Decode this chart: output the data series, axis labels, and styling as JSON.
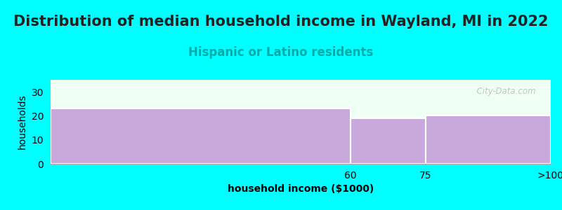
{
  "title": "Distribution of median household income in Wayland, MI in 2022",
  "subtitle": "Hispanic or Latino residents",
  "xlabel": "household income ($1000)",
  "ylabel": "households",
  "background_color": "#00FFFF",
  "plot_bg_color": "#F0FFF4",
  "bar_color": "#C9A8DC",
  "bar_edge_color": "#FFFFFF",
  "categories": [
    "60",
    "75",
    ">100"
  ],
  "values": [
    23,
    19,
    20
  ],
  "ylim": [
    0,
    35
  ],
  "yticks": [
    0,
    10,
    20,
    30
  ],
  "title_fontsize": 15,
  "subtitle_fontsize": 12,
  "subtitle_color": "#00AAAA",
  "axis_label_fontsize": 10,
  "watermark": "  City-Data.com"
}
